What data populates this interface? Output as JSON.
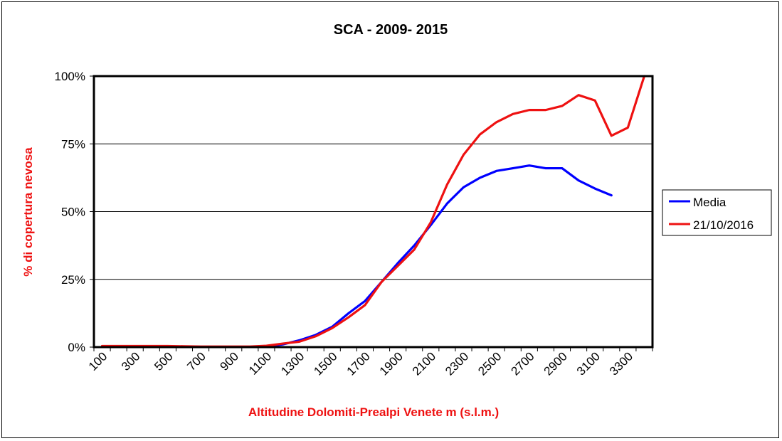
{
  "chart_data": {
    "type": "line",
    "title": "SCA - 2009- 2015",
    "xlabel": "Altitudine Dolomiti-Prealpi Venete m (s.l.m.)",
    "ylabel": "% di copertura nevosa",
    "x_tick_labels": [
      "100",
      "300",
      "500",
      "700",
      "900",
      "1100",
      "1300",
      "1500",
      "1700",
      "1900",
      "2100",
      "2300",
      "2500",
      "2700",
      "2900",
      "3100",
      "3300"
    ],
    "x": [
      100,
      200,
      300,
      400,
      500,
      600,
      700,
      800,
      900,
      1000,
      1100,
      1200,
      1300,
      1400,
      1500,
      1600,
      1700,
      1800,
      1900,
      2000,
      2100,
      2200,
      2300,
      2400,
      2500,
      2600,
      2700,
      2800,
      2900,
      3000,
      3100,
      3200,
      3300,
      3400
    ],
    "y_ticks": [
      "0%",
      "25%",
      "50%",
      "75%",
      "100%"
    ],
    "ylim": [
      0,
      100
    ],
    "grid": true,
    "legend_position": "right",
    "series": [
      {
        "name": "Media",
        "color": "#0000ff",
        "values": [
          0.3,
          0.3,
          0.3,
          0.3,
          0.3,
          0.2,
          0.1,
          0.1,
          0.1,
          0.1,
          0.3,
          1.0,
          2.5,
          4.5,
          7.5,
          12.5,
          17,
          24,
          31,
          37.5,
          45,
          53,
          59,
          62.5,
          65,
          66,
          67,
          66,
          66,
          61.5,
          58.5,
          56,
          null,
          null
        ]
      },
      {
        "name": "21/10/2016",
        "color": "#ee1111",
        "values": [
          0.4,
          0.4,
          0.4,
          0.4,
          0.4,
          0.3,
          0.2,
          0.2,
          0.2,
          0.2,
          0.5,
          1.3,
          2.0,
          4.0,
          7.0,
          11,
          15.5,
          24,
          30,
          36,
          46,
          60,
          71,
          78.5,
          83,
          86,
          87.5,
          87.5,
          89,
          93,
          91,
          78,
          81,
          100
        ]
      }
    ]
  }
}
